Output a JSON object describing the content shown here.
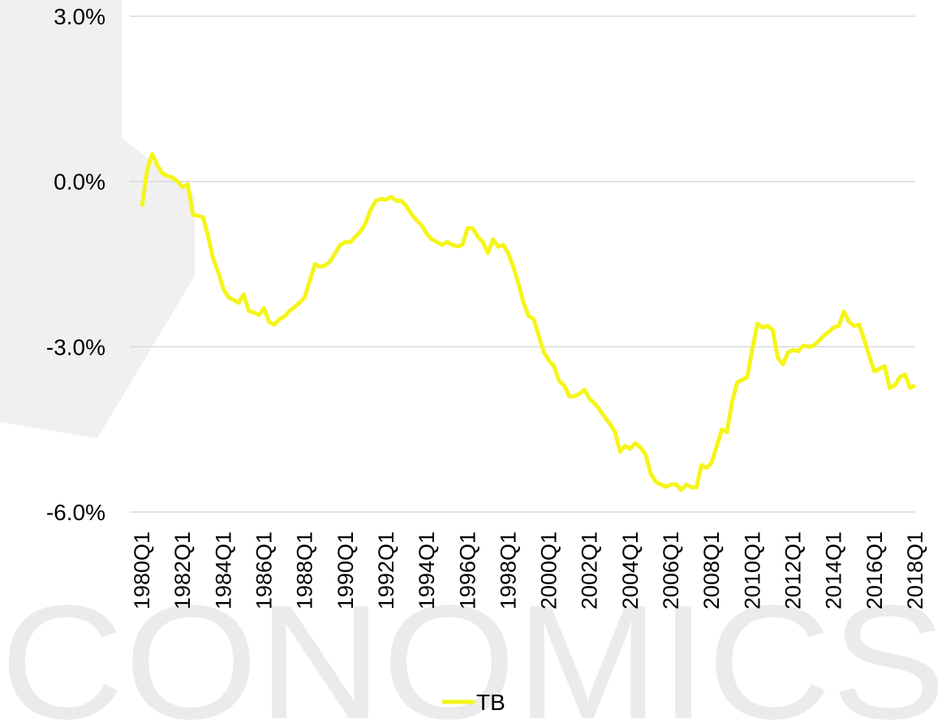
{
  "chart_data": {
    "type": "line",
    "watermark": "CONOMICS",
    "categories": [
      "1980Q1",
      null,
      null,
      null,
      null,
      null,
      null,
      null,
      "1982Q1",
      null,
      null,
      null,
      null,
      null,
      null,
      null,
      "1984Q1",
      null,
      null,
      null,
      null,
      null,
      null,
      null,
      "1986Q1",
      null,
      null,
      null,
      null,
      null,
      null,
      null,
      "1988Q1",
      null,
      null,
      null,
      null,
      null,
      null,
      null,
      "1990Q1",
      null,
      null,
      null,
      null,
      null,
      null,
      null,
      "1992Q1",
      null,
      null,
      null,
      null,
      null,
      null,
      null,
      "1994Q1",
      null,
      null,
      null,
      null,
      null,
      null,
      null,
      "1996Q1",
      null,
      null,
      null,
      null,
      null,
      null,
      null,
      "1998Q1",
      null,
      null,
      null,
      null,
      null,
      null,
      null,
      "2000Q1",
      null,
      null,
      null,
      null,
      null,
      null,
      null,
      "2002Q1",
      null,
      null,
      null,
      null,
      null,
      null,
      null,
      "2004Q1",
      null,
      null,
      null,
      null,
      null,
      null,
      null,
      "2006Q1",
      null,
      null,
      null,
      null,
      null,
      null,
      null,
      "2008Q1",
      null,
      null,
      null,
      null,
      null,
      null,
      null,
      "2010Q1",
      null,
      null,
      null,
      null,
      null,
      null,
      null,
      "2012Q1",
      null,
      null,
      null,
      null,
      null,
      null,
      null,
      "2014Q1",
      null,
      null,
      null,
      null,
      null,
      null,
      null,
      "2016Q1",
      null,
      null,
      null,
      null,
      null,
      null,
      null,
      "2018Q1"
    ],
    "series": [
      {
        "name": "TB",
        "color": "#f5f51a",
        "values": [
          -0.45,
          0.2,
          0.5,
          0.3,
          0.15,
          0.1,
          0.07,
          0.0,
          -0.1,
          -0.05,
          -0.6,
          -0.62,
          -0.65,
          -1.0,
          -1.4,
          -1.65,
          -1.95,
          -2.1,
          -2.15,
          -2.2,
          -2.05,
          -2.35,
          -2.38,
          -2.42,
          -2.3,
          -2.55,
          -2.6,
          -2.5,
          -2.45,
          -2.35,
          -2.28,
          -2.2,
          -2.1,
          -1.8,
          -1.5,
          -1.55,
          -1.52,
          -1.45,
          -1.3,
          -1.15,
          -1.1,
          -1.1,
          -1.0,
          -0.9,
          -0.75,
          -0.5,
          -0.35,
          -0.32,
          -0.33,
          -0.28,
          -0.35,
          -0.35,
          -0.45,
          -0.6,
          -0.7,
          -0.8,
          -0.95,
          -1.05,
          -1.1,
          -1.15,
          -1.1,
          -1.15,
          -1.18,
          -1.15,
          -0.85,
          -0.85,
          -1.0,
          -1.1,
          -1.3,
          -1.05,
          -1.18,
          -1.15,
          -1.3,
          -1.55,
          -1.85,
          -2.2,
          -2.44,
          -2.5,
          -2.8,
          -3.1,
          -3.25,
          -3.35,
          -3.62,
          -3.7,
          -3.9,
          -3.9,
          -3.85,
          -3.78,
          -3.95,
          -4.03,
          -4.15,
          -4.28,
          -4.4,
          -4.55,
          -4.9,
          -4.8,
          -4.85,
          -4.75,
          -4.83,
          -4.95,
          -5.3,
          -5.45,
          -5.5,
          -5.54,
          -5.5,
          -5.5,
          -5.6,
          -5.5,
          -5.55,
          -5.55,
          -5.15,
          -5.2,
          -5.1,
          -4.8,
          -4.5,
          -4.55,
          -4.0,
          -3.65,
          -3.6,
          -3.55,
          -3.03,
          -2.58,
          -2.65,
          -2.62,
          -2.7,
          -3.2,
          -3.32,
          -3.1,
          -3.06,
          -3.08,
          -2.98,
          -3.0,
          -2.98,
          -2.9,
          -2.8,
          -2.73,
          -2.65,
          -2.62,
          -2.36,
          -2.55,
          -2.62,
          -2.6,
          -2.88,
          -3.18,
          -3.45,
          -3.4,
          -3.35,
          -3.75,
          -3.7,
          -3.55,
          -3.5,
          -3.75,
          -3.7
        ]
      }
    ],
    "ylim": [
      -6,
      3
    ],
    "yticks": [
      {
        "value": -6,
        "label": "-6.0%"
      },
      {
        "value": -3,
        "label": "-3.0%"
      },
      {
        "value": 0,
        "label": "0.0%"
      },
      {
        "value": 3,
        "label": "3.0%"
      }
    ],
    "grid": true,
    "legend": "bottom"
  }
}
